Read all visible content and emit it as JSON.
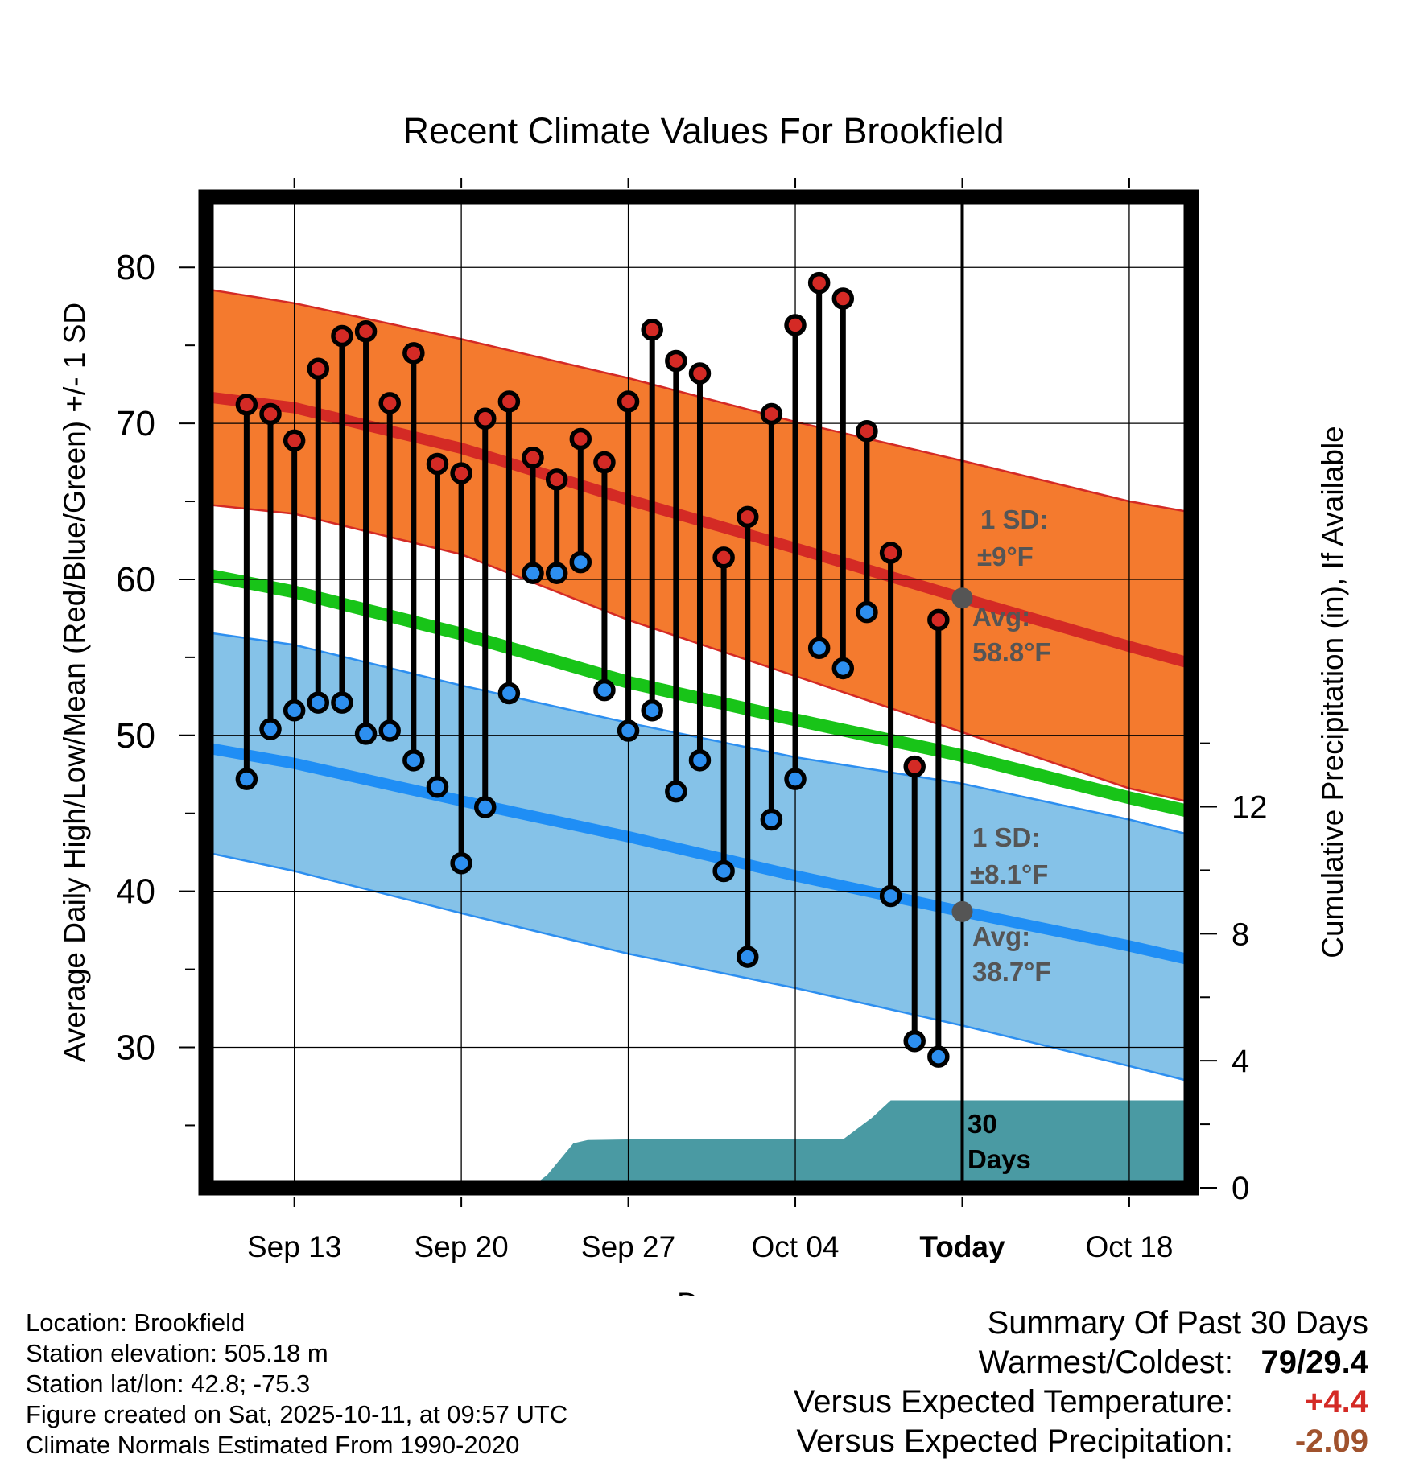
{
  "chart_data": {
    "type": "line",
    "title": "Recent Climate Values For Brookfield",
    "xlabel": "Day",
    "ylabel": "Average Daily High/Low/Mean (Red/Blue/Green) +/- 1 SD",
    "y2label": "Cumulative Precipitation (in), If Available",
    "x_tick_labels": [
      "Sep 13",
      "Sep 20",
      "Sep 27",
      "Oct 04",
      "Today",
      "Oct 18"
    ],
    "x_tick_days": [
      3,
      10,
      17,
      24,
      31,
      38
    ],
    "xlim": [
      -0.7,
      40.6
    ],
    "ylim": [
      21,
      84.5
    ],
    "y_ticks": [
      30,
      40,
      50,
      60,
      70,
      80
    ],
    "y2lim": [
      0,
      31.2
    ],
    "y2_ticks": [
      0,
      4,
      8,
      12
    ],
    "grid": true,
    "today_day": 31,
    "days": [
      1,
      2,
      3,
      4,
      5,
      6,
      7,
      8,
      9,
      10,
      11,
      12,
      13,
      14,
      15,
      16,
      17,
      18,
      19,
      20,
      21,
      22,
      23,
      24,
      25,
      26,
      27,
      28,
      29,
      30
    ],
    "daily_high": [
      71.2,
      70.6,
      68.9,
      73.5,
      75.6,
      75.9,
      71.3,
      74.5,
      67.4,
      66.8,
      70.3,
      71.4,
      67.8,
      66.4,
      69.0,
      67.5,
      71.4,
      76.0,
      74.0,
      73.2,
      61.4,
      64.0,
      70.6,
      76.3,
      79.0,
      78.0,
      69.5,
      61.7,
      48.0,
      57.4
    ],
    "daily_low": [
      47.2,
      50.4,
      51.6,
      52.1,
      52.1,
      50.1,
      50.3,
      48.4,
      46.7,
      41.8,
      45.4,
      52.7,
      60.4,
      60.4,
      61.1,
      52.9,
      50.3,
      51.6,
      46.4,
      48.4,
      41.3,
      35.8,
      44.6,
      47.2,
      55.6,
      54.3,
      57.9,
      39.7,
      30.4,
      29.4
    ],
    "normal_high": {
      "days": [
        -0.7,
        3,
        10,
        17,
        24,
        31,
        38,
        40.6
      ],
      "values": [
        71.7,
        71.0,
        68.4,
        65.1,
        62.0,
        58.8,
        55.7,
        54.6
      ],
      "upper": [
        78.6,
        77.7,
        75.4,
        72.9,
        70.1,
        67.6,
        65.0,
        64.3
      ],
      "lower": [
        64.8,
        64.2,
        61.6,
        57.4,
        53.8,
        50.2,
        46.6,
        45.7
      ]
    },
    "normal_mean": {
      "days": [
        -0.7,
        3,
        10,
        17,
        24,
        31,
        38,
        40.6
      ],
      "values": [
        60.3,
        59.2,
        56.5,
        53.4,
        51.0,
        48.7,
        46.0,
        45.1
      ]
    },
    "normal_low": {
      "days": [
        -0.7,
        3,
        10,
        17,
        24,
        31,
        38,
        40.6
      ],
      "values": [
        49.2,
        48.2,
        45.8,
        43.5,
        41.0,
        38.7,
        36.5,
        35.6
      ],
      "upper": [
        56.6,
        55.8,
        53.2,
        50.8,
        48.6,
        46.9,
        44.6,
        43.6
      ],
      "lower": [
        42.5,
        41.3,
        38.6,
        36.0,
        33.8,
        31.4,
        28.8,
        27.8
      ]
    },
    "cumulative_precip": {
      "days": [
        12.9,
        13.6,
        14.7,
        15.3,
        17,
        20,
        23,
        25,
        26,
        27.2,
        28,
        29,
        40.6
      ],
      "values": [
        0,
        0.4,
        1.4,
        1.5,
        1.52,
        1.52,
        1.52,
        1.52,
        1.52,
        2.2,
        2.75,
        2.75,
        2.75
      ]
    },
    "annotations": {
      "high_sd_label": "1 SD:",
      "high_sd_value": "±9°F",
      "high_avg_label": "Avg:",
      "high_avg_value": "58.8°F",
      "low_sd_label": "1 SD:",
      "low_sd_value": "±8.1°F",
      "low_avg_label": "Avg:",
      "low_avg_value": "38.7°F",
      "days_label_1": "30",
      "days_label_2": "Days"
    },
    "colors": {
      "high_band": "#f47a2e",
      "high_band_edge": "#d42a25",
      "high_line": "#d42a25",
      "mean_line": "#18c418",
      "low_band": "#85c2e8",
      "low_band_edge": "#2d8ff0",
      "low_line": "#1f8ef5",
      "precip": "#4a9aa3",
      "high_dot": "#d42a25",
      "low_dot": "#2d8ff0",
      "annotation_text": "#555555",
      "avg_marker": "#555555"
    }
  },
  "info": {
    "location": "Location: Brookfield",
    "elevation": "Station elevation: 505.18 m",
    "latlon": "Station lat/lon: 42.8; -75.3",
    "created": "Figure created on Sat, 2025-10-11, at 09:57 UTC",
    "normals": "Climate Normals Estimated From 1990-2020"
  },
  "summary": {
    "title": "Summary Of Past 30 Days",
    "warm_label": "Warmest/Coldest:",
    "warm_value": "79/29.4",
    "temp_label": "Versus Expected Temperature:",
    "temp_value": "+4.4",
    "temp_color": "#d42a25",
    "precip_label": "Versus Expected Precipitation:",
    "precip_value": "-2.09",
    "precip_color": "#a0522d"
  }
}
